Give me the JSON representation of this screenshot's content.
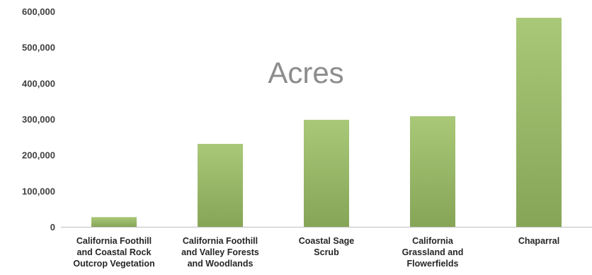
{
  "chart_data": {
    "type": "bar",
    "title": "Acres",
    "xlabel": "",
    "ylabel": "",
    "categories": [
      [
        "California Foothill",
        "and Coastal Rock",
        "Outcrop Vegetation"
      ],
      [
        "California Foothill",
        "and Valley Forests",
        "and Woodlands"
      ],
      [
        "Coastal Sage",
        "Scrub"
      ],
      [
        "California",
        "Grassland and",
        "Flowerfields"
      ],
      [
        "Chaparral"
      ]
    ],
    "values": [
      27000,
      231000,
      298000,
      308000,
      582000
    ],
    "ylim": [
      0,
      600000
    ],
    "yticks": [
      "0",
      "100,000",
      "200,000",
      "300,000",
      "400,000",
      "500,000",
      "600,000"
    ],
    "grid": false,
    "legend": "none",
    "colors": {
      "bar_top": "#a9c878",
      "bar_bottom": "#86a556",
      "axis": "#bfbfbf",
      "title": "#8c8c8c"
    }
  }
}
